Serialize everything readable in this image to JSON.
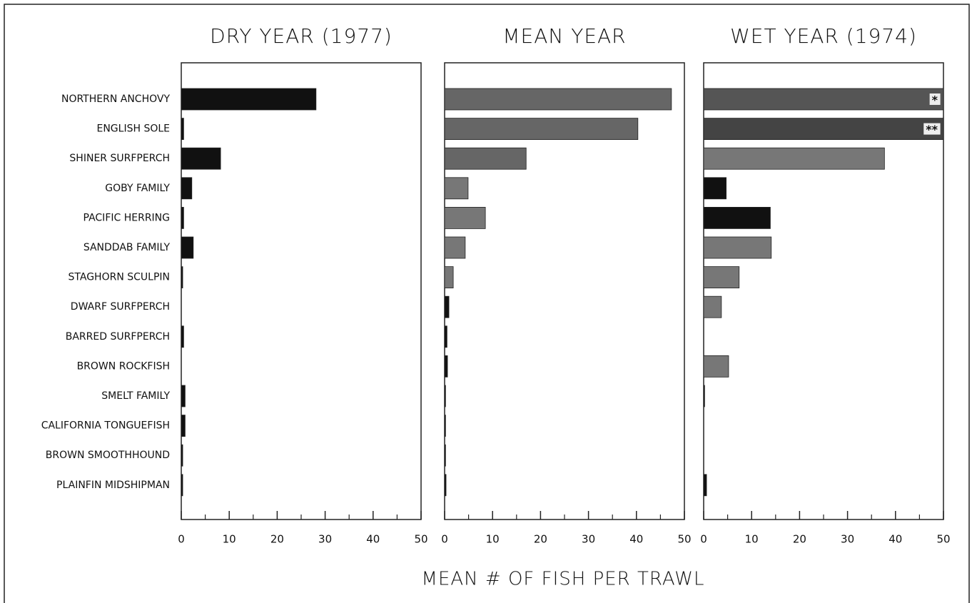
{
  "chart_data": {
    "type": "bar",
    "orientation": "horizontal",
    "xlabel": "MEAN # OF FISH PER TRAWL",
    "categories": [
      "NORTHERN ANCHOVY",
      "ENGLISH SOLE",
      "SHINER SURFPERCH",
      "GOBY FAMILY",
      "PACIFIC HERRING",
      "SANDDAB FAMILY",
      "STAGHORN SCULPIN",
      "DWARF SURFPERCH",
      "BARRED SURFPERCH",
      "BROWN ROCKFISH",
      "SMELT FAMILY",
      "CALIFORNIA TONGUEFISH",
      "BROWN SMOOTHHOUND",
      "PLAINFIN MIDSHIPMAN"
    ],
    "panels": [
      {
        "title": "DRY YEAR (1977)",
        "values": [
          28.1,
          0.5,
          8.2,
          2.2,
          0.5,
          2.5,
          0.3,
          0,
          0.5,
          0,
          0.8,
          0.8,
          0.3,
          0.3
        ],
        "colors": [
          "#111",
          "#111",
          "#111",
          "#111",
          "#111",
          "#111",
          "#111",
          "#111",
          "#111",
          "#111",
          "#111",
          "#111",
          "#111",
          "#111"
        ],
        "xlim": [
          0,
          50
        ],
        "xticks": [
          0,
          10,
          20,
          30,
          40,
          50
        ],
        "minor_xticks": [
          5,
          15,
          25,
          35,
          45
        ]
      },
      {
        "title": "MEAN YEAR",
        "values": [
          47.3,
          40.3,
          17,
          4.9,
          8.5,
          4.3,
          1.8,
          0.9,
          0.5,
          0.6,
          0.2,
          0.2,
          0.2,
          0.3
        ],
        "colors": [
          "#666",
          "#666",
          "#666",
          "#777",
          "#777",
          "#777",
          "#777",
          "#111",
          "#111",
          "#111",
          "#111",
          "#111",
          "#111",
          "#111"
        ],
        "xlim": [
          0,
          50
        ],
        "xticks": [
          0,
          10,
          20,
          30,
          40,
          50
        ],
        "minor_xticks": [
          5,
          15,
          25,
          35,
          45
        ]
      },
      {
        "title": "WET YEAR (1974)",
        "values": [
          50,
          50,
          37.7,
          4.7,
          13.9,
          14.1,
          7.4,
          3.7,
          0,
          5.2,
          0.2,
          0,
          0,
          0.6
        ],
        "colors": [
          "#555",
          "#444",
          "#777",
          "#111",
          "#111",
          "#777",
          "#777",
          "#777",
          "#777",
          "#777",
          "#111",
          "#111",
          "#111",
          "#111"
        ],
        "xlim": [
          0,
          50
        ],
        "xticks": [
          0,
          10,
          20,
          30,
          40,
          50
        ],
        "minor_xticks": [
          5,
          15,
          25,
          35,
          45
        ],
        "annotations": [
          {
            "category": "NORTHERN ANCHOVY",
            "text": "*"
          },
          {
            "category": "ENGLISH SOLE",
            "text": "**"
          }
        ]
      }
    ]
  }
}
